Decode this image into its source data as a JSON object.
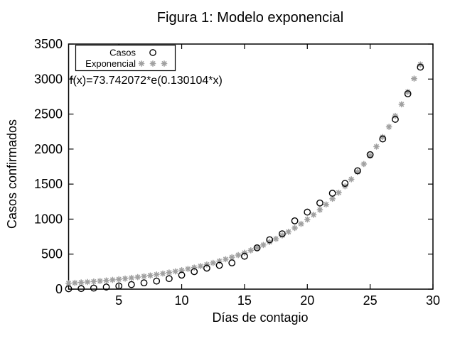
{
  "title": "Figura 1: Modelo exponencial",
  "annotation": "f(x)=73.742072*e(0.130104*x)",
  "x_axis": {
    "label": "Días de contagio",
    "min": 1,
    "max": 30,
    "ticks": [
      5,
      10,
      15,
      20,
      25,
      30
    ]
  },
  "y_axis": {
    "label": "Casos confirmados",
    "min": 0,
    "max": 3500,
    "ticks": [
      0,
      500,
      1000,
      1500,
      2000,
      2500,
      3000,
      3500
    ]
  },
  "legend": {
    "entries": [
      {
        "label": "Casos",
        "marker": "open-circle",
        "color": "#000000"
      },
      {
        "label": "Exponencial",
        "marker": "asterisk",
        "color": "#a0a0a0"
      }
    ]
  },
  "colors": {
    "casos": "#000000",
    "exponencial": "#a0a0a0",
    "border": "#000000",
    "background": "#ffffff"
  },
  "chart_data": {
    "type": "scatter",
    "title": "Figura 1: Modelo exponencial",
    "xlabel": "Días de contagio",
    "ylabel": "Casos confirmados",
    "xlim": [
      1,
      30
    ],
    "ylim": [
      0,
      3500
    ],
    "grid": false,
    "legend_position": "top-left-inside",
    "series": [
      {
        "name": "Casos",
        "marker": "open-circle",
        "color": "#000000",
        "x": [
          1,
          2,
          3,
          4,
          5,
          6,
          7,
          8,
          9,
          10,
          11,
          12,
          13,
          14,
          15,
          16,
          17,
          18,
          19,
          20,
          21,
          22,
          23,
          24,
          25,
          26,
          27,
          28,
          29
        ],
        "y": [
          5,
          8,
          15,
          30,
          45,
          65,
          90,
          115,
          150,
          200,
          250,
          300,
          340,
          375,
          470,
          590,
          705,
          790,
          975,
          1100,
          1230,
          1370,
          1510,
          1690,
          1920,
          2145,
          2425,
          2790,
          3170
        ]
      },
      {
        "name": "Exponencial",
        "marker": "asterisk",
        "color": "#a0a0a0",
        "formula": "f(x)=73.742072*e(0.130104*x)",
        "a": 73.742072,
        "b": 0.130104,
        "x_start": 1,
        "x_end": 29,
        "x_step": 0.5
      }
    ]
  }
}
